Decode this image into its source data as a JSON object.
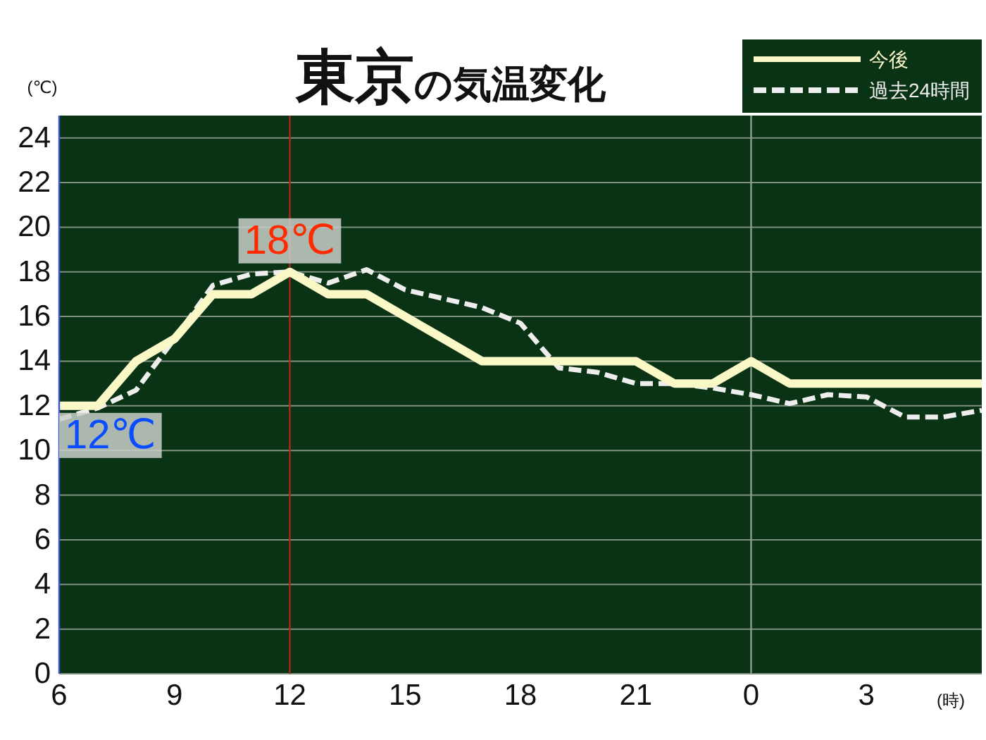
{
  "chart_data": {
    "type": "line",
    "title": "東京の気温変化",
    "ylabel": "(℃)",
    "xlabel": "(時)",
    "categories": [
      "6",
      null,
      null,
      "9",
      null,
      null,
      "12",
      null,
      null,
      "15",
      null,
      null,
      "18",
      null,
      null,
      "21",
      null,
      null,
      "0",
      null,
      null,
      "3",
      null,
      null,
      null
    ],
    "ylim": [
      0,
      25
    ],
    "yticks": [
      0,
      2,
      4,
      6,
      8,
      10,
      12,
      14,
      16,
      18,
      20,
      22,
      24
    ],
    "grid": "y",
    "legend": "top right",
    "series": [
      {
        "name": "今後",
        "color": "#fbf8c8",
        "line_style": "solid",
        "values": [
          12,
          12,
          14,
          15,
          17,
          17,
          18,
          17,
          17,
          16,
          15,
          14,
          14,
          14,
          14,
          14,
          13,
          13,
          14,
          13,
          13,
          13,
          13,
          13,
          13
        ]
      },
      {
        "name": "過去24時間",
        "color": "#eeeeee",
        "line_style": "dashed",
        "values": [
          11.4,
          11.9,
          12.7,
          15,
          17.4,
          17.9,
          18,
          17.5,
          18.1,
          17.2,
          16.8,
          16.4,
          15.7,
          13.7,
          13.5,
          13,
          13,
          12.8,
          12.5,
          12.1,
          12.5,
          12.4,
          11.5,
          11.5,
          11.8
        ]
      }
    ],
    "ref_lines": [
      {
        "axis": "x",
        "value": "12",
        "color": "#b0281e"
      },
      {
        "axis": "x",
        "value": "0",
        "color": "#8e9e8e"
      }
    ],
    "annotations": [
      {
        "text": "18℃",
        "x": "12",
        "y": 18
      },
      {
        "text": "12℃",
        "x": "6",
        "y": 12
      }
    ]
  }
}
